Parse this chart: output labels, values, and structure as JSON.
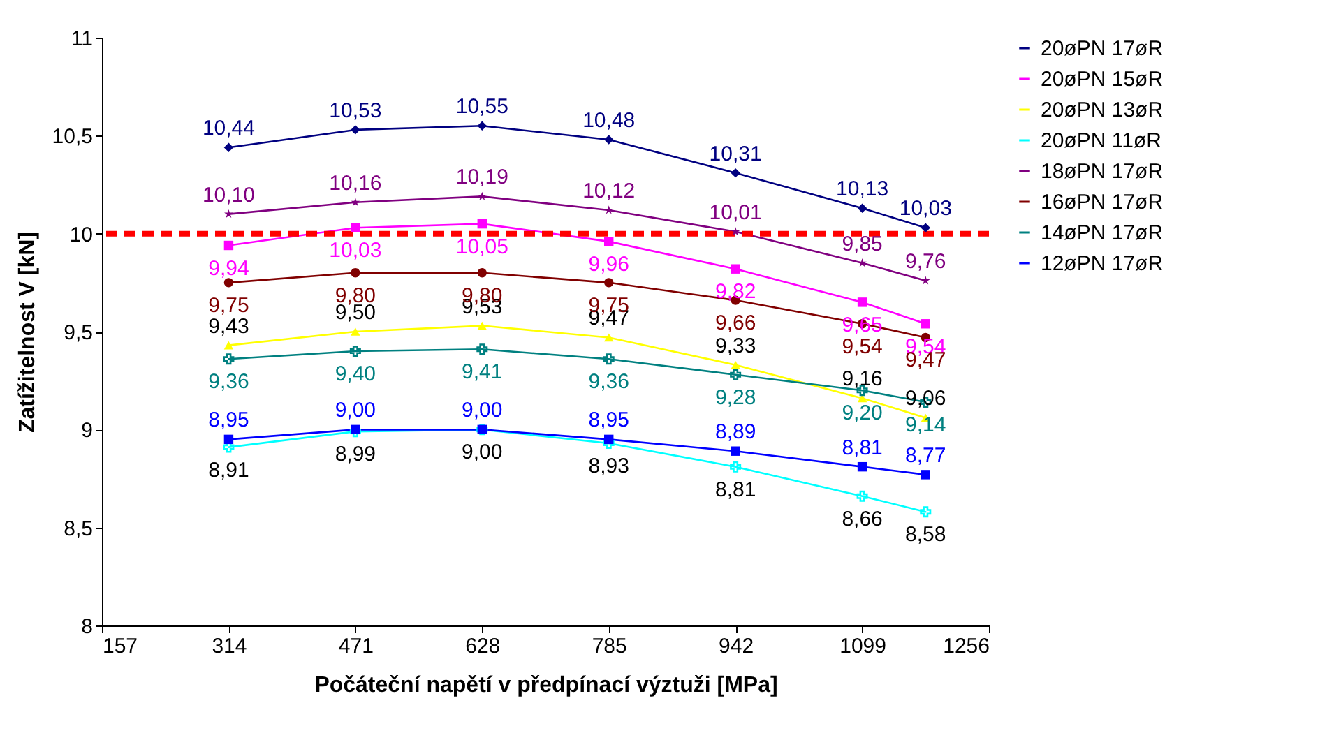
{
  "chart_data": {
    "type": "line",
    "xlabel": "Počáteční napětí v předpínací výztuži [MPa]",
    "ylabel": "Zatížitelnost V [kN]",
    "x": [
      314,
      471,
      628,
      785,
      942,
      1099,
      1177.5
    ],
    "xlim": [
      157,
      1256
    ],
    "xticks": [
      157,
      314,
      471,
      628,
      785,
      942,
      1099,
      1256
    ],
    "ylim": [
      8,
      11
    ],
    "yticks": [
      8,
      {
        "value": 8.5,
        "label": "8,5"
      },
      9,
      {
        "value": 9.5,
        "label": "9,5"
      },
      10,
      {
        "value": 10.5,
        "label": "10,5"
      },
      11
    ],
    "grid": false,
    "legend": "right",
    "ref_lines": [
      {
        "axis": "y",
        "value": 10,
        "color": "#ff0000",
        "line_style": "dashed"
      }
    ],
    "series": [
      {
        "name": "20øPN 17øR",
        "color": "#000080",
        "marker": "diamond",
        "values": [
          10.44,
          10.53,
          10.55,
          10.48,
          10.31,
          10.13,
          10.03
        ],
        "value_labels": [
          "10,44",
          "10,53",
          "10,55",
          "10,48",
          "10,31",
          "10,13",
          "10,03"
        ]
      },
      {
        "name": "20øPN 15øR",
        "color": "#ff00ff",
        "marker": "square",
        "values": [
          9.94,
          10.03,
          10.05,
          9.96,
          9.82,
          9.65,
          9.54
        ],
        "value_labels": [
          "9,94",
          "10,03",
          "10,05",
          "9,96",
          "9,82",
          "9,65",
          "9,54"
        ]
      },
      {
        "name": "20øPN 13øR",
        "color": "#ffff00",
        "marker": "triangle",
        "values": [
          9.43,
          9.5,
          9.53,
          9.47,
          9.33,
          9.16,
          9.06
        ],
        "value_labels": [
          "9,43",
          "9,50",
          "9,53",
          "9,47",
          "9,33",
          "9,16",
          "9,06"
        ]
      },
      {
        "name": "20øPN 11øR",
        "color": "#00ffff",
        "marker": "cross",
        "values": [
          8.91,
          8.99,
          9.0,
          8.93,
          8.81,
          8.66,
          8.58
        ],
        "value_labels": [
          "8,91",
          "8,99",
          "9,00",
          "8,93",
          "8,81",
          "8,66",
          "8,58"
        ]
      },
      {
        "name": "18øPN 17øR",
        "color": "#800080",
        "marker": "star",
        "values": [
          10.1,
          10.16,
          10.19,
          10.12,
          10.01,
          9.85,
          9.76
        ],
        "value_labels": [
          "10,10",
          "10,16",
          "10,19",
          "10,12",
          "10,01",
          "9,85",
          "9,76"
        ]
      },
      {
        "name": "16øPN 17øR",
        "color": "#800000",
        "marker": "circle",
        "values": [
          9.75,
          9.8,
          9.8,
          9.75,
          9.66,
          9.54,
          9.47
        ],
        "value_labels": [
          "9,75",
          "9,80",
          "9,80",
          "9,75",
          "9,66",
          "9,54",
          "9,47"
        ]
      },
      {
        "name": "14øPN 17øR",
        "color": "#008080",
        "marker": "cross",
        "values": [
          9.36,
          9.4,
          9.41,
          9.36,
          9.28,
          9.2,
          9.14
        ],
        "value_labels": [
          "9,36",
          "9,40",
          "9,41",
          "9,36",
          "9,28",
          "9,20",
          "9,14"
        ]
      },
      {
        "name": "12øPN 17øR",
        "color": "#0000ff",
        "marker": "square",
        "values": [
          8.95,
          9.0,
          9.0,
          8.95,
          8.89,
          8.81,
          8.77
        ],
        "value_labels": [
          "8,95",
          "9,00",
          "9,00",
          "8,95",
          "8,89",
          "8,81",
          "8,77"
        ]
      }
    ]
  }
}
